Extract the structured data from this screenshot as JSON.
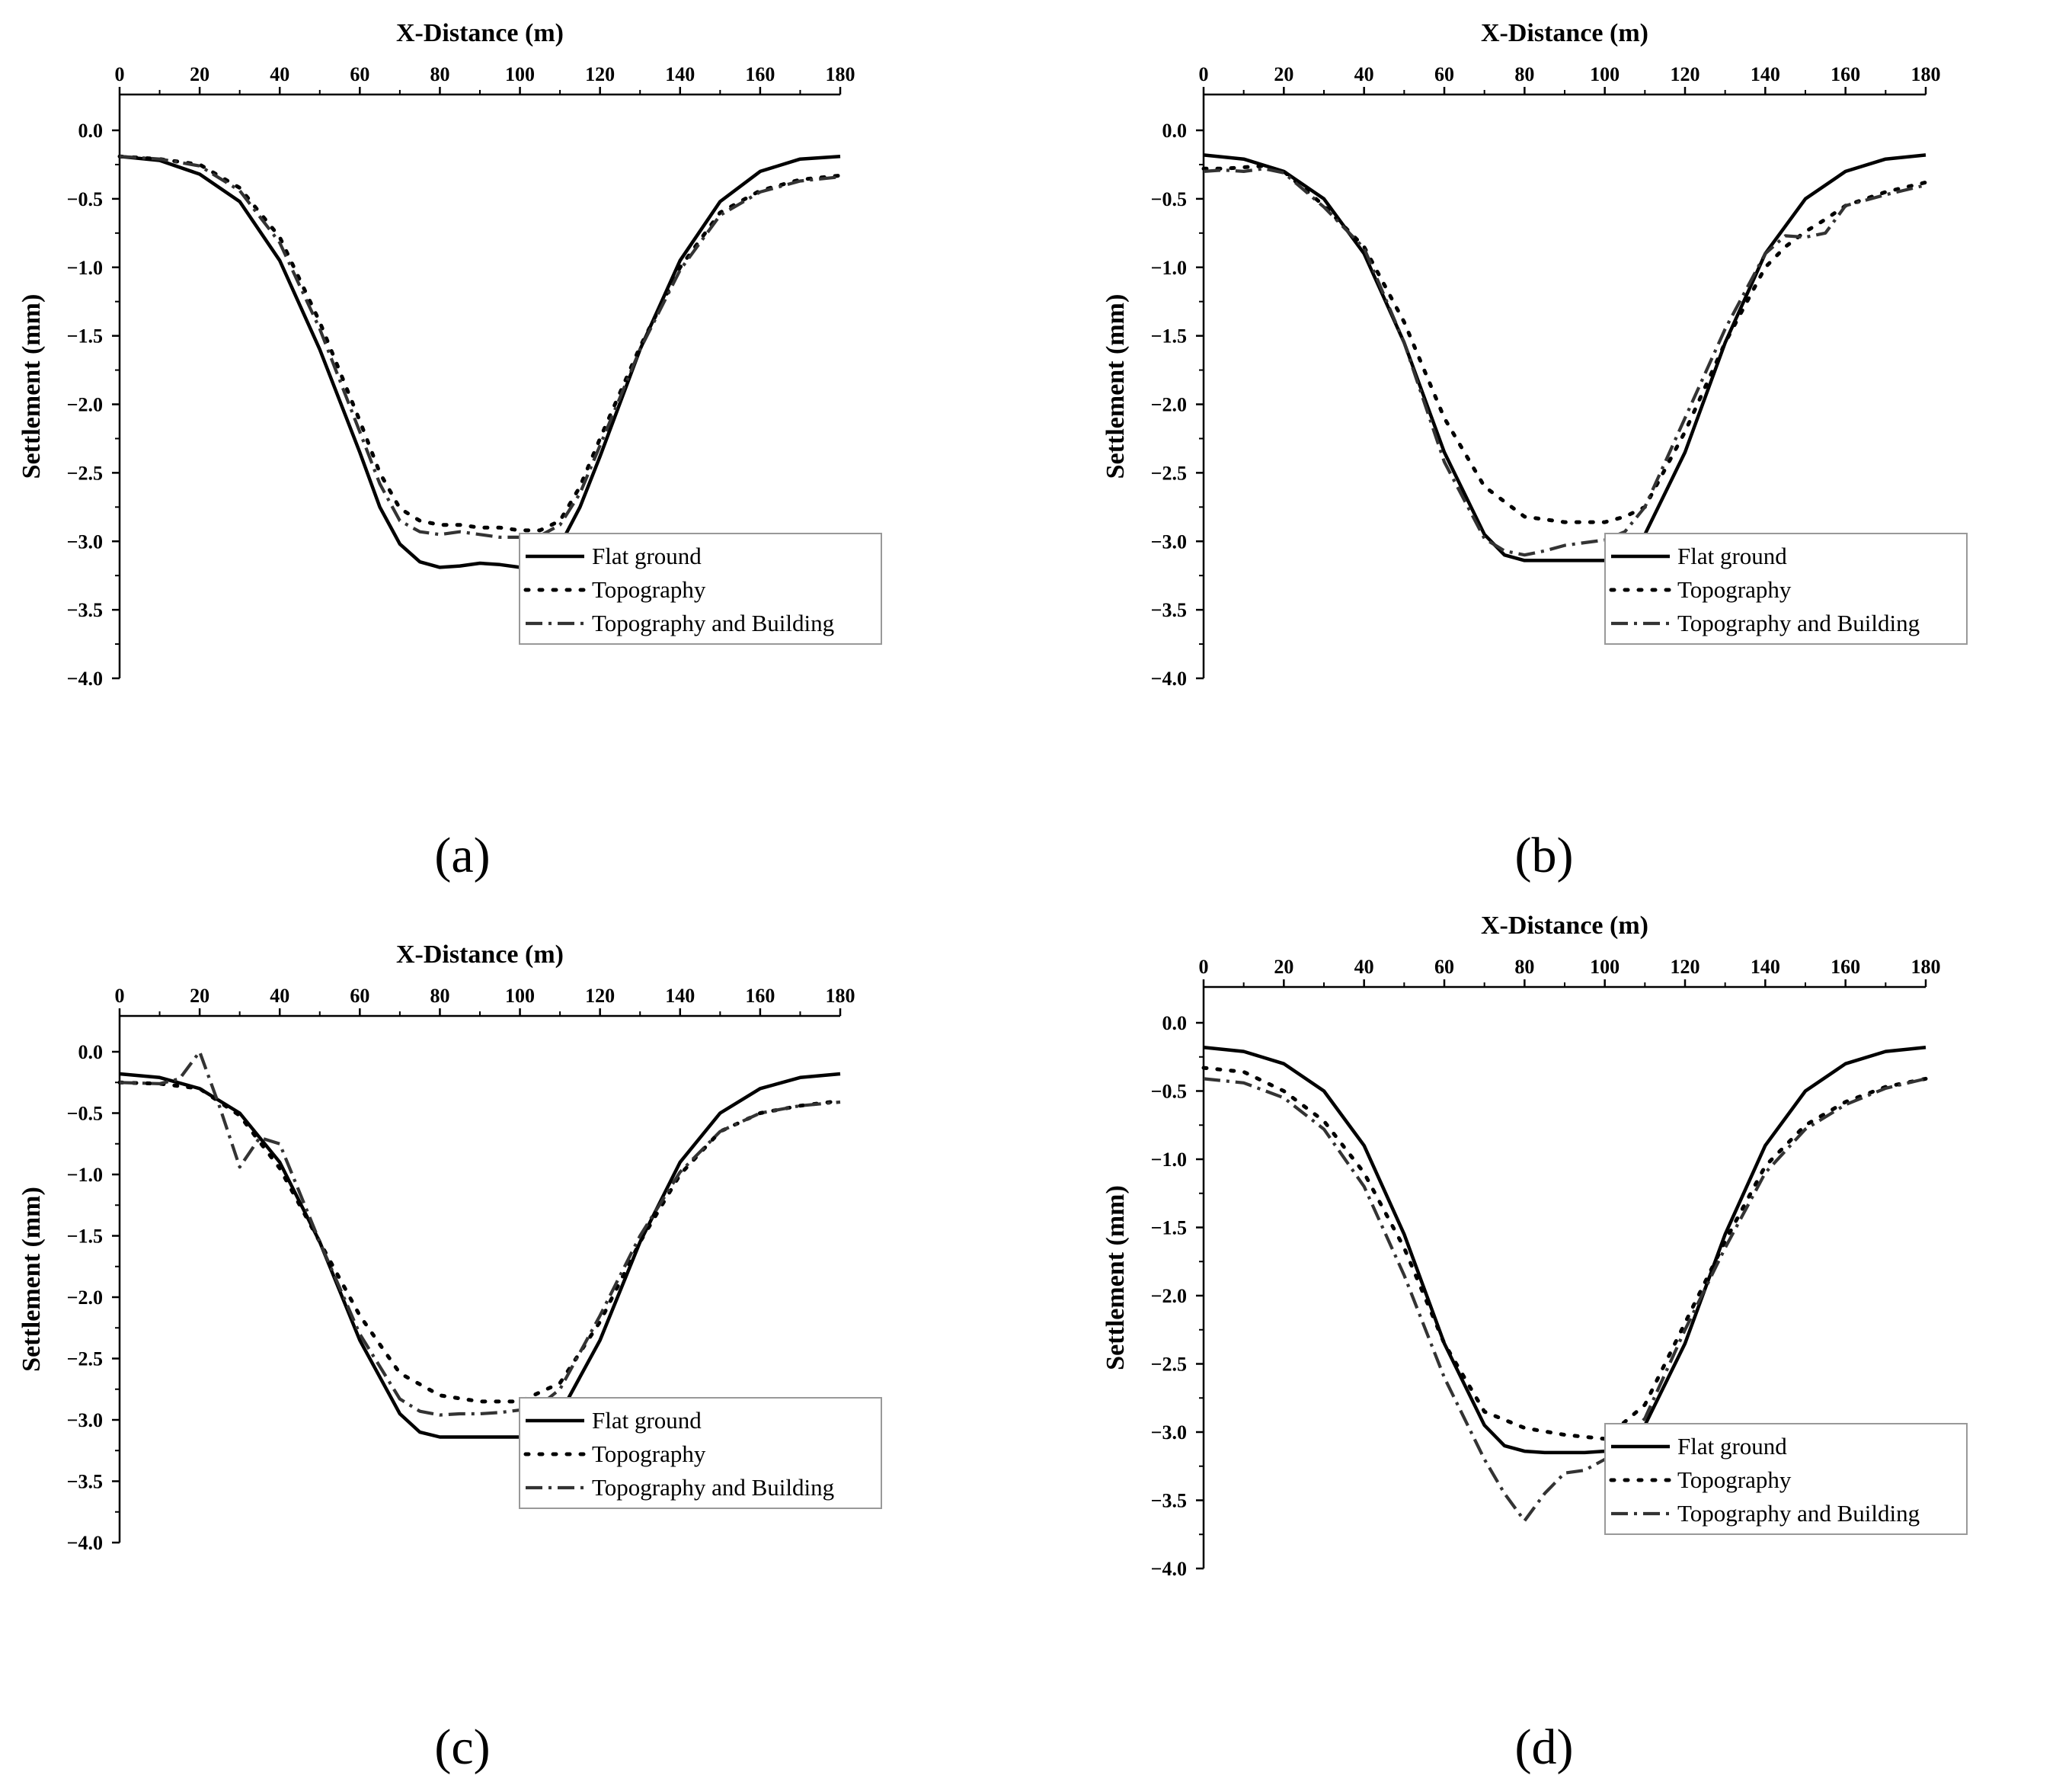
{
  "chart_data": [
    {
      "type": "line",
      "panel_label": "(a)",
      "xlabel": "X-Distance (m)",
      "ylabel": "Settlement (mm)",
      "xlim": [
        0,
        180
      ],
      "ylim": [
        -4.0,
        0.0
      ],
      "x_ticks": [
        "0",
        "20",
        "40",
        "60",
        "80",
        "100",
        "120",
        "140",
        "160",
        "180"
      ],
      "y_ticks": [
        "0.0",
        "-0.5",
        "-1.0",
        "-1.5",
        "-2.0",
        "-2.5",
        "-3.0",
        "-3.5",
        "-4.0"
      ],
      "legend_position": "lower-right",
      "grid": false,
      "series": [
        {
          "name": "Flat ground",
          "style": "solid",
          "x": [
            0,
            10,
            20,
            30,
            40,
            50,
            60,
            65,
            70,
            75,
            80,
            85,
            90,
            95,
            100,
            105,
            110,
            115,
            120,
            130,
            140,
            150,
            160,
            170,
            180
          ],
          "y": [
            -0.19,
            -0.22,
            -0.32,
            -0.52,
            -0.95,
            -1.6,
            -2.35,
            -2.75,
            -3.02,
            -3.15,
            -3.19,
            -3.18,
            -3.16,
            -3.17,
            -3.19,
            -3.16,
            -3.03,
            -2.75,
            -2.38,
            -1.6,
            -0.95,
            -0.52,
            -0.3,
            -0.21,
            -0.19
          ]
        },
        {
          "name": "Topography",
          "style": "dotted",
          "x": [
            0,
            10,
            20,
            30,
            40,
            50,
            60,
            65,
            70,
            75,
            80,
            85,
            90,
            95,
            100,
            105,
            110,
            115,
            120,
            130,
            140,
            150,
            160,
            170,
            180
          ],
          "y": [
            -0.19,
            -0.21,
            -0.25,
            -0.42,
            -0.78,
            -1.4,
            -2.12,
            -2.5,
            -2.76,
            -2.85,
            -2.88,
            -2.88,
            -2.9,
            -2.9,
            -2.92,
            -2.92,
            -2.85,
            -2.6,
            -2.25,
            -1.58,
            -1.0,
            -0.6,
            -0.44,
            -0.36,
            -0.33
          ]
        },
        {
          "name": "Topography and Building",
          "style": "dashdot",
          "x": [
            0,
            10,
            20,
            30,
            40,
            50,
            60,
            65,
            70,
            75,
            80,
            85,
            90,
            95,
            100,
            105,
            110,
            115,
            120,
            130,
            140,
            150,
            160,
            170,
            180
          ],
          "y": [
            -0.19,
            -0.21,
            -0.26,
            -0.44,
            -0.82,
            -1.45,
            -2.2,
            -2.58,
            -2.85,
            -2.93,
            -2.95,
            -2.93,
            -2.95,
            -2.97,
            -2.97,
            -2.96,
            -2.88,
            -2.65,
            -2.3,
            -1.6,
            -1.02,
            -0.62,
            -0.45,
            -0.37,
            -0.34
          ]
        }
      ]
    },
    {
      "type": "line",
      "panel_label": "(b)",
      "xlabel": "X-Distance (m)",
      "ylabel": "Settlement (mm)",
      "xlim": [
        0,
        180
      ],
      "ylim": [
        -4.0,
        0.0
      ],
      "x_ticks": [
        "0",
        "20",
        "40",
        "60",
        "80",
        "100",
        "120",
        "140",
        "160",
        "180"
      ],
      "y_ticks": [
        "0.0",
        "-0.5",
        "-1.0",
        "-1.5",
        "-2.0",
        "-2.5",
        "-3.0",
        "-3.5",
        "-4.0"
      ],
      "legend_position": "lower-right",
      "grid": false,
      "series": [
        {
          "name": "Flat ground",
          "style": "solid",
          "x": [
            0,
            10,
            20,
            30,
            40,
            50,
            60,
            70,
            75,
            80,
            85,
            90,
            95,
            100,
            105,
            110,
            120,
            130,
            140,
            150,
            160,
            170,
            180
          ],
          "y": [
            -0.18,
            -0.21,
            -0.3,
            -0.5,
            -0.9,
            -1.55,
            -2.35,
            -2.95,
            -3.1,
            -3.14,
            -3.14,
            -3.14,
            -3.14,
            -3.14,
            -3.08,
            -2.95,
            -2.35,
            -1.55,
            -0.9,
            -0.5,
            -0.3,
            -0.21,
            -0.18
          ]
        },
        {
          "name": "Topography",
          "style": "dotted",
          "x": [
            0,
            5,
            10,
            15,
            20,
            30,
            40,
            50,
            60,
            70,
            80,
            90,
            100,
            105,
            110,
            120,
            130,
            140,
            145,
            150,
            155,
            160,
            170,
            180
          ],
          "y": [
            -0.28,
            -0.28,
            -0.27,
            -0.26,
            -0.3,
            -0.55,
            -0.85,
            -1.4,
            -2.1,
            -2.6,
            -2.82,
            -2.86,
            -2.86,
            -2.82,
            -2.75,
            -2.2,
            -1.55,
            -1.0,
            -0.85,
            -0.74,
            -0.65,
            -0.55,
            -0.45,
            -0.38
          ]
        },
        {
          "name": "Topography and Building",
          "style": "dashdot",
          "x": [
            0,
            5,
            10,
            15,
            20,
            30,
            40,
            50,
            60,
            70,
            75,
            80,
            85,
            90,
            95,
            100,
            105,
            110,
            120,
            130,
            140,
            145,
            150,
            155,
            160,
            170,
            180
          ],
          "y": [
            -0.3,
            -0.29,
            -0.3,
            -0.28,
            -0.31,
            -0.56,
            -0.86,
            -1.55,
            -2.42,
            -2.98,
            -3.07,
            -3.1,
            -3.07,
            -3.03,
            -3.01,
            -2.99,
            -2.93,
            -2.75,
            -2.1,
            -1.45,
            -0.9,
            -0.77,
            -0.78,
            -0.75,
            -0.55,
            -0.47,
            -0.4
          ]
        }
      ]
    },
    {
      "type": "line",
      "panel_label": "(c)",
      "xlabel": "X-Distance (m)",
      "ylabel": "Settlement (mm)",
      "xlim": [
        0,
        180
      ],
      "ylim": [
        -4.0,
        0.0
      ],
      "x_ticks": [
        "0",
        "20",
        "40",
        "60",
        "80",
        "100",
        "120",
        "140",
        "160",
        "180"
      ],
      "y_ticks": [
        "0.0",
        "-0.5",
        "-1.0",
        "-1.5",
        "-2.0",
        "-2.5",
        "-3.0",
        "-3.5",
        "-4.0"
      ],
      "legend_position": "lower-right",
      "grid": false,
      "series": [
        {
          "name": "Flat ground",
          "style": "solid",
          "x": [
            0,
            10,
            20,
            30,
            40,
            50,
            60,
            70,
            75,
            80,
            85,
            90,
            95,
            100,
            105,
            110,
            120,
            130,
            140,
            150,
            160,
            170,
            180
          ],
          "y": [
            -0.18,
            -0.21,
            -0.3,
            -0.5,
            -0.9,
            -1.55,
            -2.35,
            -2.95,
            -3.1,
            -3.14,
            -3.14,
            -3.14,
            -3.14,
            -3.14,
            -3.08,
            -2.95,
            -2.35,
            -1.55,
            -0.9,
            -0.5,
            -0.3,
            -0.21,
            -0.18
          ]
        },
        {
          "name": "Topography",
          "style": "dotted",
          "x": [
            0,
            10,
            20,
            30,
            40,
            50,
            60,
            70,
            80,
            90,
            100,
            110,
            120,
            130,
            140,
            150,
            160,
            170,
            180
          ],
          "y": [
            -0.25,
            -0.26,
            -0.3,
            -0.52,
            -0.95,
            -1.55,
            -2.15,
            -2.62,
            -2.8,
            -2.85,
            -2.85,
            -2.7,
            -2.2,
            -1.55,
            -1.0,
            -0.65,
            -0.5,
            -0.44,
            -0.4
          ]
        },
        {
          "name": "Topography and Building",
          "style": "dashdot",
          "x": [
            0,
            10,
            15,
            20,
            25,
            30,
            35,
            40,
            50,
            60,
            70,
            75,
            80,
            85,
            90,
            95,
            100,
            105,
            110,
            120,
            130,
            140,
            150,
            160,
            170,
            180
          ],
          "y": [
            -0.25,
            -0.26,
            -0.22,
            0.0,
            -0.45,
            -0.94,
            -0.7,
            -0.75,
            -1.55,
            -2.3,
            -2.83,
            -2.93,
            -2.96,
            -2.95,
            -2.95,
            -2.94,
            -2.92,
            -2.88,
            -2.75,
            -2.15,
            -1.5,
            -0.98,
            -0.65,
            -0.5,
            -0.44,
            -0.41
          ]
        }
      ]
    },
    {
      "type": "line",
      "panel_label": "(d)",
      "xlabel": "X-Distance (m)",
      "ylabel": "Settlement (mm)",
      "xlim": [
        0,
        180
      ],
      "ylim": [
        -4.0,
        0.0
      ],
      "x_ticks": [
        "0",
        "20",
        "40",
        "60",
        "80",
        "100",
        "120",
        "140",
        "160",
        "180"
      ],
      "y_ticks": [
        "0.0",
        "-0.5",
        "-1.0",
        "-1.5",
        "-2.0",
        "-2.5",
        "-3.0",
        "-3.5",
        "-4.0"
      ],
      "legend_position": "lower-right",
      "grid": false,
      "series": [
        {
          "name": "Flat ground",
          "style": "solid",
          "x": [
            0,
            10,
            20,
            30,
            40,
            50,
            60,
            70,
            75,
            80,
            85,
            90,
            95,
            100,
            105,
            110,
            120,
            130,
            140,
            150,
            160,
            170,
            180
          ],
          "y": [
            -0.18,
            -0.21,
            -0.3,
            -0.5,
            -0.9,
            -1.55,
            -2.35,
            -2.95,
            -3.1,
            -3.14,
            -3.15,
            -3.15,
            -3.15,
            -3.14,
            -3.08,
            -2.95,
            -2.35,
            -1.55,
            -0.9,
            -0.5,
            -0.3,
            -0.21,
            -0.18
          ]
        },
        {
          "name": "Topography",
          "style": "dotted",
          "x": [
            0,
            10,
            20,
            30,
            40,
            50,
            60,
            70,
            80,
            90,
            100,
            110,
            120,
            130,
            140,
            150,
            160,
            170,
            180
          ],
          "y": [
            -0.33,
            -0.36,
            -0.5,
            -0.72,
            -1.1,
            -1.65,
            -2.35,
            -2.85,
            -2.97,
            -3.02,
            -3.05,
            -2.8,
            -2.2,
            -1.6,
            -1.05,
            -0.75,
            -0.58,
            -0.47,
            -0.41
          ]
        },
        {
          "name": "Topography and Building",
          "style": "dashdot",
          "x": [
            0,
            10,
            20,
            30,
            40,
            50,
            60,
            70,
            75,
            80,
            85,
            90,
            95,
            100,
            110,
            120,
            130,
            140,
            150,
            160,
            170,
            180
          ],
          "y": [
            -0.41,
            -0.44,
            -0.55,
            -0.78,
            -1.2,
            -1.85,
            -2.6,
            -3.2,
            -3.45,
            -3.65,
            -3.45,
            -3.3,
            -3.28,
            -3.2,
            -2.9,
            -2.25,
            -1.65,
            -1.1,
            -0.78,
            -0.6,
            -0.48,
            -0.41
          ]
        }
      ]
    }
  ]
}
